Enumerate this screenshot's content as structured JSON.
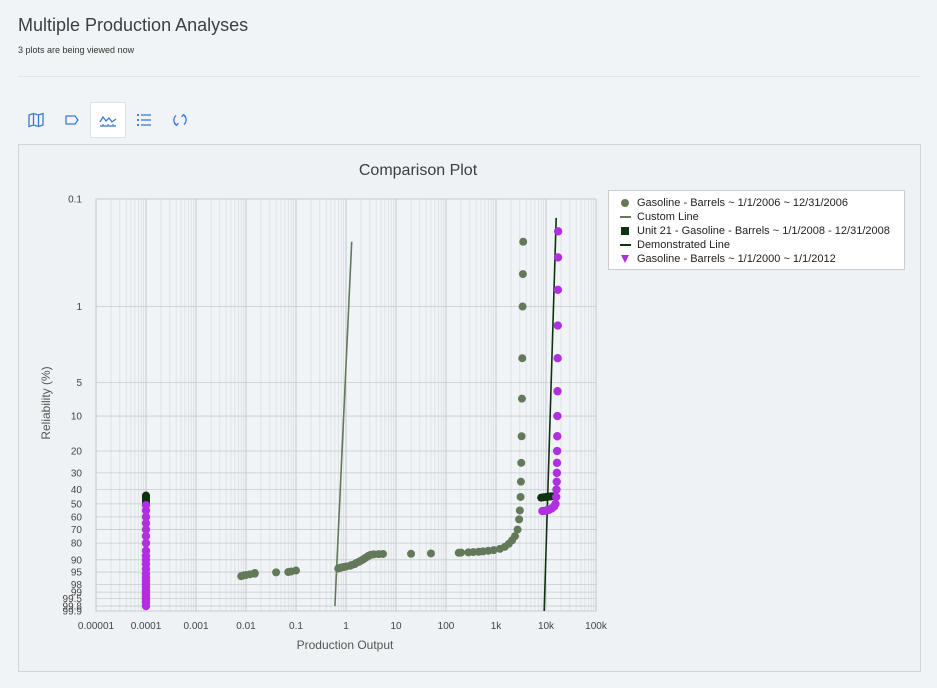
{
  "page": {
    "title": "Multiple Production Analyses",
    "subtitle": "3 plots are being viewed now"
  },
  "toolbar": {
    "buttons": [
      {
        "icon": "map-icon",
        "active": false
      },
      {
        "icon": "tag-icon",
        "active": false
      },
      {
        "icon": "chart-icon",
        "active": true
      },
      {
        "icon": "list-icon",
        "active": false
      },
      {
        "icon": "refresh-icon",
        "active": false
      }
    ]
  },
  "colors": {
    "accent": "#3a7bd5",
    "series_gas_2006": "#62795a",
    "custom_line": "#62795a",
    "series_unit21": "#0f3310",
    "demonstrated_line": "#0f3310",
    "series_gas_2000": "#b030e0",
    "grid": "#d3d7db",
    "plot_bg": "#f1f4f7"
  },
  "chart_data": {
    "type": "scatter",
    "title": "Comparison Plot",
    "xlabel": "Production Output",
    "ylabel": "Reliability (%)",
    "x_scale": "log",
    "x_ticks": [
      {
        "value": 1e-05,
        "label": "0.00001"
      },
      {
        "value": 0.0001,
        "label": "0.0001"
      },
      {
        "value": 0.001,
        "label": "0.001"
      },
      {
        "value": 0.01,
        "label": "0.01"
      },
      {
        "value": 0.1,
        "label": "0.1"
      },
      {
        "value": 1,
        "label": "1"
      },
      {
        "value": 10,
        "label": "10"
      },
      {
        "value": 100,
        "label": "100"
      },
      {
        "value": 1000,
        "label": "1k"
      },
      {
        "value": 10000,
        "label": "10k"
      },
      {
        "value": 100000,
        "label": "100k"
      }
    ],
    "y_scale": "weibull",
    "y_ticks": [
      {
        "value": 0.1,
        "label": "0.1"
      },
      {
        "value": 1,
        "label": "1"
      },
      {
        "value": 5,
        "label": "5"
      },
      {
        "value": 10,
        "label": "10"
      },
      {
        "value": 20,
        "label": "20"
      },
      {
        "value": 30,
        "label": "30"
      },
      {
        "value": 40,
        "label": "40"
      },
      {
        "value": 50,
        "label": "50"
      },
      {
        "value": 60,
        "label": "60"
      },
      {
        "value": 70,
        "label": "70"
      },
      {
        "value": 80,
        "label": "80"
      },
      {
        "value": 90,
        "label": "90"
      },
      {
        "value": 95,
        "label": "95"
      },
      {
        "value": 98,
        "label": "98"
      },
      {
        "value": 99,
        "label": "99"
      },
      {
        "value": 99.5,
        "label": "99.5"
      },
      {
        "value": 99.8,
        "label": "99.8"
      },
      {
        "value": 99.9,
        "label": "99.9"
      }
    ],
    "xlim": [
      1e-05,
      100000
    ],
    "ylim": [
      0.1,
      99.9
    ],
    "grid": true,
    "legend_position": "right",
    "series": [
      {
        "name": "Gasoline - Barrels ~ 1/1/2006 ~ 12/31/2006",
        "kind": "scatter",
        "marker": "circle",
        "points": [
          [
            0.008,
            96.2
          ],
          [
            0.009,
            96.0
          ],
          [
            0.01,
            95.9
          ],
          [
            0.012,
            95.7
          ],
          [
            0.015,
            95.5
          ],
          [
            0.015,
            95.3
          ],
          [
            0.04,
            95.1
          ],
          [
            0.07,
            95.0
          ],
          [
            0.08,
            94.8
          ],
          [
            0.1,
            94.5
          ],
          [
            0.7,
            93.8
          ],
          [
            0.75,
            93.6
          ],
          [
            0.8,
            93.4
          ],
          [
            0.9,
            93.2
          ],
          [
            1.0,
            93.0
          ],
          [
            1.2,
            92.7
          ],
          [
            1.3,
            92.4
          ],
          [
            1.5,
            92.0
          ],
          [
            1.6,
            91.5
          ],
          [
            1.8,
            91.0
          ],
          [
            2.0,
            90.4
          ],
          [
            2.2,
            89.8
          ],
          [
            2.4,
            89.2
          ],
          [
            2.6,
            88.6
          ],
          [
            2.8,
            88.0
          ],
          [
            3.0,
            87.6
          ],
          [
            3.2,
            87.3
          ],
          [
            3.6,
            87.1
          ],
          [
            4.5,
            87.0
          ],
          [
            5.5,
            86.9
          ],
          [
            20,
            86.8
          ],
          [
            50,
            86.6
          ],
          [
            180,
            86.2
          ],
          [
            200,
            86.1
          ],
          [
            280,
            86.0
          ],
          [
            350,
            85.8
          ],
          [
            450,
            85.6
          ],
          [
            550,
            85.4
          ],
          [
            700,
            85.0
          ],
          [
            900,
            84.6
          ],
          [
            1200,
            83.8
          ],
          [
            1500,
            82.5
          ],
          [
            1800,
            80.5
          ],
          [
            2100,
            78.0
          ],
          [
            2400,
            75.0
          ],
          [
            2700,
            70.0
          ],
          [
            2900,
            62.0
          ],
          [
            3000,
            55.0
          ],
          [
            3100,
            45.0
          ],
          [
            3150,
            35.0
          ],
          [
            3200,
            25.0
          ],
          [
            3250,
            15.0
          ],
          [
            3300,
            7.0
          ],
          [
            3350,
            3.0
          ],
          [
            3400,
            1.0
          ],
          [
            3450,
            0.5
          ],
          [
            3500,
            0.25
          ]
        ]
      },
      {
        "name": "Custom Line",
        "kind": "line",
        "points": [
          [
            0.6,
            99.8
          ],
          [
            1.3,
            0.25
          ]
        ]
      },
      {
        "name": "Unit 21 - Gasoline - Barrels ~ 1/1/2008 - 12/31/2008",
        "kind": "scatter",
        "marker": "square",
        "points": [
          [
            0.0001,
            44
          ],
          [
            0.0001,
            45
          ],
          [
            0.0001,
            46
          ],
          [
            0.0001,
            47
          ],
          [
            0.0001,
            48
          ],
          [
            0.0001,
            49
          ],
          [
            0.0001,
            99.3
          ],
          [
            0.0001,
            99.5
          ],
          [
            0.0001,
            99.6
          ],
          [
            0.0001,
            99.7
          ],
          [
            8000,
            45.5
          ],
          [
            9000,
            45.2
          ],
          [
            10000,
            45.0
          ],
          [
            11000,
            44.8
          ],
          [
            12000,
            44.7
          ],
          [
            13000,
            44.5
          ]
        ]
      },
      {
        "name": "Demonstrated Line",
        "kind": "line",
        "points": [
          [
            9200,
            99.9
          ],
          [
            16000,
            0.15
          ]
        ]
      },
      {
        "name": "Gasoline - Barrels ~ 1/1/2000 ~ 1/1/2012",
        "kind": "scatter",
        "marker": "triangle",
        "points": [
          [
            0.0001,
            51
          ],
          [
            0.0001,
            55
          ],
          [
            0.0001,
            60
          ],
          [
            0.0001,
            65
          ],
          [
            0.0001,
            70
          ],
          [
            0.0001,
            75
          ],
          [
            0.0001,
            80
          ],
          [
            0.0001,
            85
          ],
          [
            0.0001,
            88
          ],
          [
            0.0001,
            90
          ],
          [
            0.0001,
            92
          ],
          [
            0.0001,
            94
          ],
          [
            0.0001,
            95.5
          ],
          [
            0.0001,
            96.5
          ],
          [
            0.0001,
            97.3
          ],
          [
            0.0001,
            97.9
          ],
          [
            0.0001,
            98.4
          ],
          [
            0.0001,
            98.8
          ],
          [
            0.0001,
            99.0
          ],
          [
            0.0001,
            99.2
          ],
          [
            0.0001,
            99.35
          ],
          [
            0.0001,
            99.45
          ],
          [
            0.0001,
            99.55
          ],
          [
            0.0001,
            99.65
          ],
          [
            0.0001,
            99.8
          ],
          [
            8500,
            55.5
          ],
          [
            9500,
            55.3
          ],
          [
            10500,
            55.0
          ],
          [
            11500,
            54.5
          ],
          [
            13000,
            53.5
          ],
          [
            14500,
            52.0
          ],
          [
            15500,
            50.0
          ],
          [
            16000,
            45.0
          ],
          [
            16200,
            40.0
          ],
          [
            16400,
            35.0
          ],
          [
            16500,
            30.0
          ],
          [
            16600,
            25.0
          ],
          [
            16700,
            20.0
          ],
          [
            16800,
            15.0
          ],
          [
            16900,
            10.0
          ],
          [
            17000,
            6.0
          ],
          [
            17100,
            3.0
          ],
          [
            17200,
            1.5
          ],
          [
            17300,
            0.7
          ],
          [
            17400,
            0.35
          ],
          [
            17500,
            0.2
          ]
        ]
      }
    ]
  }
}
